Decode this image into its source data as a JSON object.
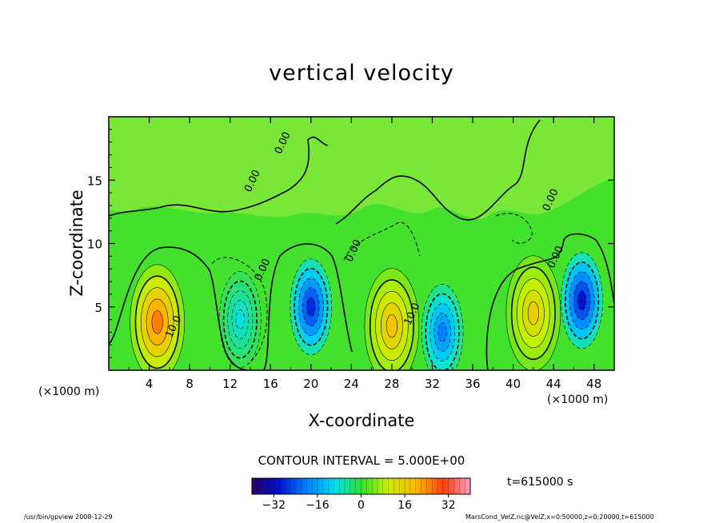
{
  "chart_data": {
    "type": "heatmap",
    "title": "vertical velocity",
    "xlabel": "X-coordinate",
    "ylabel": "Z-coordinate",
    "x_unit": "(×1000 m)",
    "y_unit": "(×1000 m)",
    "xlim": [
      0,
      50
    ],
    "ylim": [
      0,
      20
    ],
    "x_ticks": [
      4,
      8,
      12,
      16,
      20,
      24,
      28,
      32,
      36,
      40,
      44,
      48
    ],
    "y_ticks": [
      5,
      10,
      15
    ],
    "contour_interval_label": "CONTOUR INTERVAL = 5.000E+00",
    "contour_labels": [
      "10.0",
      "10.0",
      "0.00",
      "0.00",
      "0.00",
      "0.00",
      "0.00",
      "0.00"
    ],
    "colorbar": {
      "min": -40,
      "max": 40,
      "ticks": [
        -32,
        -16,
        0,
        16,
        32
      ]
    },
    "time_label": "t=615000 s",
    "features": [
      {
        "kind": "updraft",
        "x": 4.8,
        "z": 3.8,
        "peak": 25
      },
      {
        "kind": "downdraft",
        "x": 20.0,
        "z": 5.0,
        "peak": -28
      },
      {
        "kind": "updraft",
        "x": 28.0,
        "z": 3.5,
        "peak": 18
      },
      {
        "kind": "downdraft",
        "x": 33.0,
        "z": 3.0,
        "peak": -20
      },
      {
        "kind": "updraft",
        "x": 42.0,
        "z": 4.5,
        "peak": 16
      },
      {
        "kind": "downdraft",
        "x": 46.8,
        "z": 5.5,
        "peak": -30
      },
      {
        "kind": "downdraft",
        "x": 13.0,
        "z": 4.0,
        "peak": -9
      }
    ]
  },
  "footer": {
    "left": "/usr/bin/gpview  2008-12-29",
    "right": "MarsCond_VelZ.nc@VelZ,x=0:50000,z=0:20000,t=615000"
  }
}
